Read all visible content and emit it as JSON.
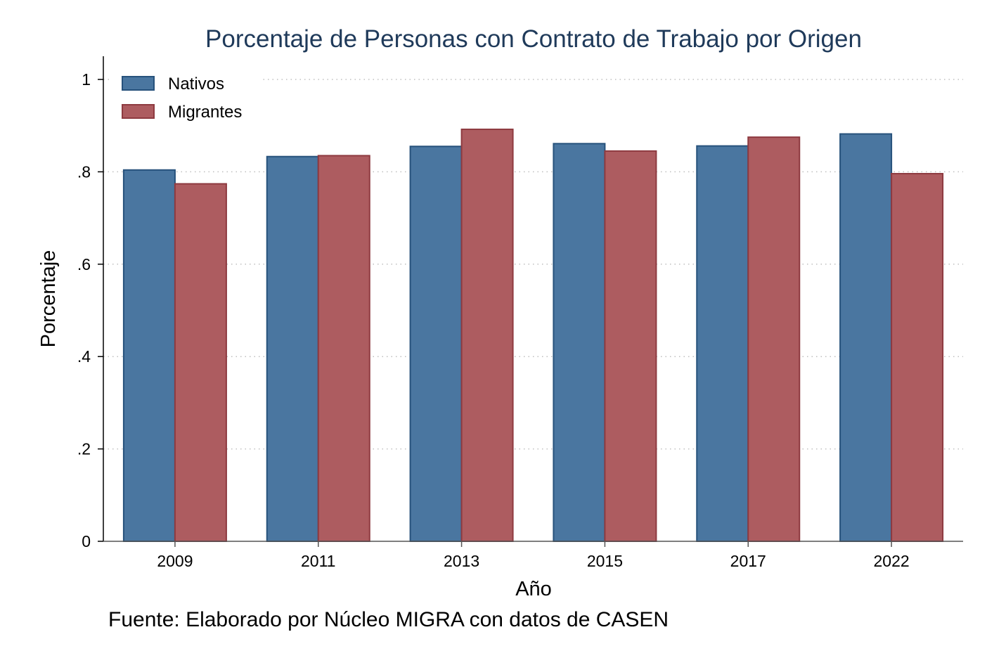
{
  "chart_data": {
    "type": "bar",
    "title": "Porcentaje de Personas con Contrato de Trabajo por Origen",
    "xlabel": "Año",
    "ylabel": "Porcentaje",
    "categories": [
      "2009",
      "2011",
      "2013",
      "2015",
      "2017",
      "2022"
    ],
    "series": [
      {
        "name": "Nativos",
        "color": "#4a76a0",
        "edge": "#27527c",
        "values": [
          0.804,
          0.833,
          0.855,
          0.861,
          0.856,
          0.882
        ]
      },
      {
        "name": "Migrantes",
        "color": "#ad5c60",
        "edge": "#8e3a40",
        "values": [
          0.774,
          0.835,
          0.892,
          0.845,
          0.875,
          0.796
        ]
      }
    ],
    "ylim": [
      0,
      1.05
    ],
    "yticks": [
      0,
      0.2,
      0.4,
      0.6,
      0.8,
      1
    ],
    "ytick_labels": [
      "0",
      ".2",
      ".4",
      ".6",
      ".8",
      "1"
    ],
    "grid": "horizontal dotted",
    "legend_position": "top-left, inside"
  },
  "note": "Fuente: Elaborado por Núcleo MIGRA con datos de CASEN"
}
